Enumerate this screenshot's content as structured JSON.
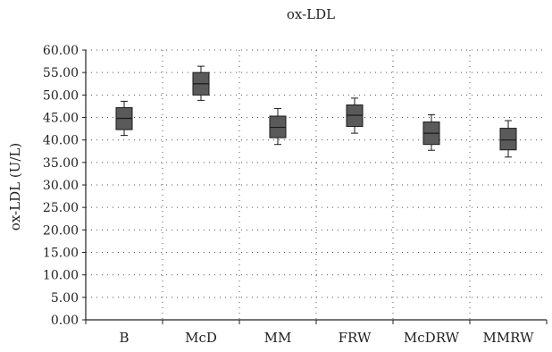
{
  "chart_data": {
    "type": "box",
    "title": "ox-LDL",
    "xlabel": "",
    "ylabel": "ox-LDL (U/L)",
    "ylim": [
      0,
      60
    ],
    "yticks": [
      "0.00",
      "5.00",
      "10.00",
      "15.00",
      "20.00",
      "25.00",
      "30.00",
      "35.00",
      "40.00",
      "45.00",
      "50.00",
      "55.00",
      "60.00"
    ],
    "grid": true,
    "categories": [
      "B",
      "McD",
      "MM",
      "FRW",
      "McDRW",
      "MMRW"
    ],
    "boxes": [
      {
        "min": 41.0,
        "q1": 42.3,
        "median": 44.8,
        "q3": 47.2,
        "max": 48.6
      },
      {
        "min": 48.8,
        "q1": 50.0,
        "median": 52.5,
        "q3": 55.0,
        "max": 56.4
      },
      {
        "min": 39.0,
        "q1": 40.5,
        "median": 42.8,
        "q3": 45.3,
        "max": 47.0
      },
      {
        "min": 41.5,
        "q1": 43.0,
        "median": 45.5,
        "q3": 47.8,
        "max": 49.3
      },
      {
        "min": 37.7,
        "q1": 39.0,
        "median": 41.5,
        "q3": 44.0,
        "max": 45.6
      },
      {
        "min": 36.2,
        "q1": 37.8,
        "median": 40.0,
        "q3": 42.6,
        "max": 44.3
      }
    ],
    "colors": {
      "box_fill": "#5a5a5a",
      "box_stroke": "#1a1a1a",
      "grid": "#555555",
      "axis": "#222222"
    }
  }
}
